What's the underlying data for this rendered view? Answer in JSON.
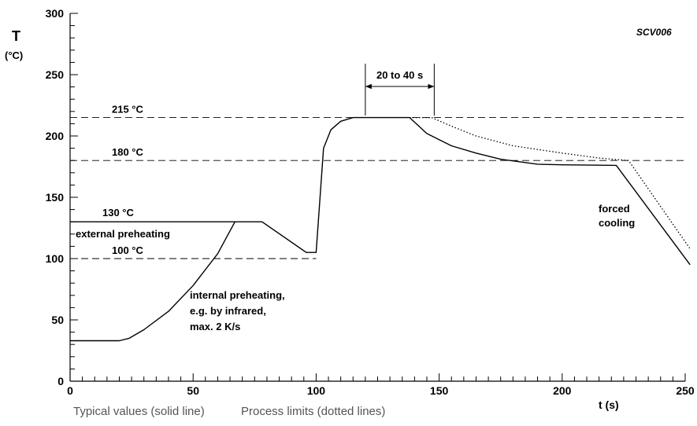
{
  "chart_data": {
    "type": "line",
    "reference": "SCV006",
    "ylabel": "T",
    "yunit": "(°C)",
    "xlabel": "t (s)",
    "xlim": [
      0,
      250
    ],
    "ylim": [
      0,
      300
    ],
    "xticks": [
      0,
      50,
      100,
      150,
      200,
      250
    ],
    "yticks": [
      0,
      50,
      100,
      150,
      200,
      250,
      300
    ],
    "x_minor_step": 5,
    "y_minor_step": 10,
    "grid": false,
    "series": [
      {
        "style": "solid",
        "points": [
          [
            0,
            33
          ],
          [
            20,
            33
          ],
          [
            24,
            35
          ],
          [
            30,
            42
          ],
          [
            40,
            57
          ],
          [
            50,
            78
          ],
          [
            60,
            104
          ],
          [
            67,
            130
          ]
        ]
      },
      {
        "style": "solid",
        "points": [
          [
            0,
            130
          ],
          [
            78,
            130
          ],
          [
            96,
            105
          ],
          [
            100,
            105
          ],
          [
            103,
            190
          ],
          [
            106,
            205
          ],
          [
            110,
            212
          ],
          [
            115,
            215
          ],
          [
            138,
            215
          ],
          [
            145,
            202
          ],
          [
            155,
            192
          ],
          [
            165,
            186
          ],
          [
            175,
            181
          ],
          [
            190,
            177
          ],
          [
            200,
            176.5
          ],
          [
            222,
            176
          ],
          [
            252,
            95
          ]
        ]
      },
      {
        "style": "dotted",
        "points": [
          [
            138,
            215
          ],
          [
            147,
            215
          ],
          [
            155,
            208
          ],
          [
            165,
            200
          ],
          [
            180,
            192
          ],
          [
            200,
            186
          ],
          [
            215,
            182
          ],
          [
            227,
            180
          ],
          [
            252,
            108
          ]
        ]
      }
    ],
    "reference_lines": [
      {
        "y": 215,
        "label": "215 °C",
        "x_range": [
          0,
          250
        ]
      },
      {
        "y": 180,
        "label": "180 °C",
        "x_range": [
          0,
          250
        ]
      },
      {
        "y": 100,
        "label": "100 °C",
        "x_range": [
          0,
          100
        ]
      }
    ],
    "annotations": {
      "preheat_130": "130 °C",
      "external_preheating": "external preheating",
      "internal_preheating": [
        "internal preheating,",
        "e.g. by infrared,",
        "max. 2 K/s"
      ],
      "forced_cooling": [
        "forced",
        "cooling"
      ],
      "duration": "20 to 40 s",
      "duration_range": [
        120,
        148
      ]
    },
    "footer_left": "Typical values (solid line)",
    "footer_right": "Process limits (dotted lines)"
  }
}
